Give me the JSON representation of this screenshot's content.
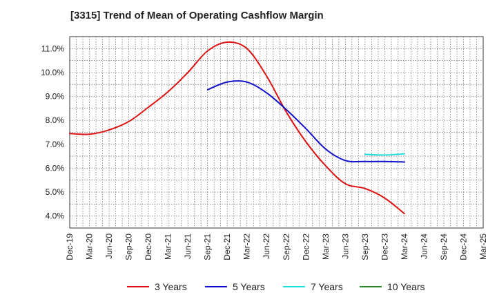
{
  "chart_data": {
    "type": "line",
    "title": "[3315]  Trend of Mean of Operating Cashflow Margin",
    "xlabel": "",
    "ylabel": "",
    "ylim": [
      3.5,
      11.5
    ],
    "yticks": [
      4.0,
      5.0,
      6.0,
      7.0,
      8.0,
      9.0,
      10.0,
      11.0
    ],
    "ytick_labels": [
      "4.0%",
      "5.0%",
      "6.0%",
      "7.0%",
      "8.0%",
      "9.0%",
      "10.0%",
      "11.0%"
    ],
    "categories": [
      "Dec-19",
      "Mar-20",
      "Jun-20",
      "Sep-20",
      "Dec-20",
      "Mar-21",
      "Jun-21",
      "Sep-21",
      "Dec-21",
      "Mar-22",
      "Jun-22",
      "Sep-22",
      "Dec-22",
      "Mar-23",
      "Jun-23",
      "Sep-23",
      "Dec-23",
      "Mar-24",
      "Jun-24",
      "Sep-24",
      "Dec-24",
      "Mar-25"
    ],
    "grid": true,
    "legend_position": "bottom",
    "series": [
      {
        "name": "3 Years",
        "color": "#dd1111",
        "values": [
          7.45,
          7.42,
          7.6,
          7.95,
          8.55,
          9.2,
          10.0,
          10.9,
          11.27,
          11.0,
          9.85,
          8.35,
          7.1,
          6.1,
          5.35,
          5.15,
          4.75,
          4.1,
          null,
          null,
          null,
          null
        ]
      },
      {
        "name": "5 Years",
        "color": "#1111cc",
        "values": [
          null,
          null,
          null,
          null,
          null,
          null,
          null,
          9.28,
          9.6,
          9.6,
          9.15,
          8.45,
          7.65,
          6.8,
          6.32,
          6.28,
          6.28,
          6.26,
          null,
          null,
          null,
          null
        ]
      },
      {
        "name": "7 Years",
        "color": "#22dddd",
        "values": [
          null,
          null,
          null,
          null,
          null,
          null,
          null,
          null,
          null,
          null,
          null,
          null,
          null,
          null,
          null,
          6.58,
          6.55,
          6.6,
          null,
          null,
          null,
          null
        ]
      },
      {
        "name": "10 Years",
        "color": "#228822",
        "values": [
          null,
          null,
          null,
          null,
          null,
          null,
          null,
          null,
          null,
          null,
          null,
          null,
          null,
          null,
          null,
          null,
          null,
          null,
          null,
          null,
          null,
          null
        ]
      }
    ]
  }
}
